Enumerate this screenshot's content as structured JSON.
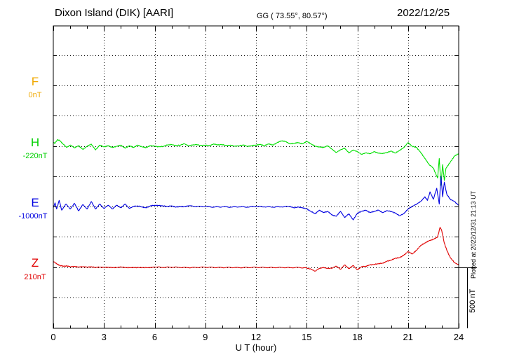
{
  "header": {
    "station": "Dixon Island (DIK)  [AARI]",
    "coords": "GG ( 73.55°,  80.57°)",
    "date": "2022/12/25"
  },
  "footer": {
    "plotted": "Plotted at 2022/12/31 21:13 UT"
  },
  "chart_data": {
    "type": "line",
    "title": "",
    "xlabel": "U T (hour)",
    "ylabel": "",
    "xlim": [
      0,
      24
    ],
    "x_ticks": [
      "0",
      "3",
      "6",
      "9",
      "12",
      "15",
      "18",
      "21",
      "24"
    ],
    "grid": true,
    "scale_bar": {
      "value": 500,
      "label": "500 nT"
    },
    "series": [
      {
        "name": "F",
        "baseline": "0nT",
        "color": "#f0a800",
        "points": []
      },
      {
        "name": "H",
        "baseline": "-220nT",
        "color": "#00e000",
        "points": [
          [
            0,
            30
          ],
          [
            0.1,
            25
          ],
          [
            0.25,
            55
          ],
          [
            0.4,
            45
          ],
          [
            0.6,
            15
          ],
          [
            0.8,
            -10
          ],
          [
            1.0,
            10
          ],
          [
            1.25,
            -12
          ],
          [
            1.5,
            5
          ],
          [
            1.75,
            -25
          ],
          [
            2.0,
            0
          ],
          [
            2.25,
            18
          ],
          [
            2.5,
            -30
          ],
          [
            2.75,
            10
          ],
          [
            3.0,
            -5
          ],
          [
            3.25,
            5
          ],
          [
            3.5,
            -10
          ],
          [
            3.75,
            0
          ],
          [
            4.0,
            10
          ],
          [
            4.25,
            -15
          ],
          [
            4.5,
            5
          ],
          [
            4.75,
            -10
          ],
          [
            5.0,
            10
          ],
          [
            5.25,
            -5
          ],
          [
            5.5,
            -10
          ],
          [
            5.75,
            5
          ],
          [
            6.0,
            2
          ],
          [
            6.25,
            -5
          ],
          [
            6.5,
            0
          ],
          [
            6.75,
            10
          ],
          [
            7.0,
            15
          ],
          [
            7.25,
            5
          ],
          [
            7.5,
            10
          ],
          [
            7.75,
            20
          ],
          [
            8.0,
            5
          ],
          [
            8.25,
            10
          ],
          [
            8.5,
            15
          ],
          [
            8.75,
            5
          ],
          [
            9.0,
            10
          ],
          [
            9.25,
            5
          ],
          [
            9.5,
            20
          ],
          [
            9.75,
            10
          ],
          [
            10.0,
            15
          ],
          [
            10.25,
            5
          ],
          [
            10.5,
            10
          ],
          [
            10.75,
            0
          ],
          [
            11.0,
            5
          ],
          [
            11.25,
            10
          ],
          [
            11.5,
            0
          ],
          [
            11.75,
            5
          ],
          [
            12.0,
            10
          ],
          [
            12.25,
            15
          ],
          [
            12.5,
            5
          ],
          [
            12.75,
            20
          ],
          [
            13.0,
            10
          ],
          [
            13.25,
            30
          ],
          [
            13.5,
            45
          ],
          [
            13.75,
            40
          ],
          [
            14.0,
            20
          ],
          [
            14.25,
            25
          ],
          [
            14.5,
            30
          ],
          [
            14.75,
            20
          ],
          [
            15.0,
            40
          ],
          [
            15.25,
            20
          ],
          [
            15.5,
            0
          ],
          [
            15.75,
            -5
          ],
          [
            16.0,
            -10
          ],
          [
            16.25,
            5
          ],
          [
            16.5,
            -25
          ],
          [
            16.75,
            -50
          ],
          [
            17.0,
            -30
          ],
          [
            17.25,
            -15
          ],
          [
            17.5,
            -55
          ],
          [
            17.75,
            -30
          ],
          [
            18.0,
            -45
          ],
          [
            18.25,
            -65
          ],
          [
            18.5,
            -55
          ],
          [
            18.75,
            -60
          ],
          [
            19.0,
            -45
          ],
          [
            19.25,
            -55
          ],
          [
            19.5,
            -60
          ],
          [
            19.75,
            -50
          ],
          [
            20.0,
            -40
          ],
          [
            20.25,
            -55
          ],
          [
            20.5,
            -35
          ],
          [
            20.75,
            -10
          ],
          [
            21.0,
            30
          ],
          [
            21.25,
            0
          ],
          [
            21.5,
            -10
          ],
          [
            21.75,
            -50
          ],
          [
            22.0,
            -100
          ],
          [
            22.25,
            -150
          ],
          [
            22.5,
            -180
          ],
          [
            22.75,
            -260
          ],
          [
            22.85,
            -100
          ],
          [
            22.95,
            -320
          ],
          [
            23.05,
            -150
          ],
          [
            23.15,
            -280
          ],
          [
            23.25,
            -180
          ],
          [
            23.5,
            -130
          ],
          [
            23.75,
            -80
          ],
          [
            24.0,
            -60
          ]
        ]
      },
      {
        "name": "E",
        "baseline": "-1000nT",
        "color": "#0000e0",
        "points": [
          [
            0,
            -10
          ],
          [
            0.1,
            30
          ],
          [
            0.2,
            -20
          ],
          [
            0.35,
            50
          ],
          [
            0.5,
            -30
          ],
          [
            0.75,
            20
          ],
          [
            1.0,
            -20
          ],
          [
            1.25,
            25
          ],
          [
            1.5,
            -35
          ],
          [
            1.75,
            15
          ],
          [
            2.0,
            -20
          ],
          [
            2.25,
            40
          ],
          [
            2.5,
            -20
          ],
          [
            2.75,
            20
          ],
          [
            3.0,
            -15
          ],
          [
            3.25,
            10
          ],
          [
            3.5,
            -20
          ],
          [
            3.75,
            10
          ],
          [
            4.0,
            -10
          ],
          [
            4.25,
            20
          ],
          [
            4.5,
            -15
          ],
          [
            4.75,
            0
          ],
          [
            5.0,
            5
          ],
          [
            5.25,
            -5
          ],
          [
            5.5,
            -10
          ],
          [
            5.75,
            5
          ],
          [
            6.0,
            10
          ],
          [
            6.25,
            8
          ],
          [
            6.5,
            5
          ],
          [
            6.75,
            0
          ],
          [
            7.0,
            5
          ],
          [
            7.25,
            -5
          ],
          [
            7.5,
            0
          ],
          [
            7.75,
            -2
          ],
          [
            8.0,
            5
          ],
          [
            8.5,
            0
          ],
          [
            9.0,
            0
          ],
          [
            9.5,
            -5
          ],
          [
            10.0,
            -3
          ],
          [
            10.5,
            -5
          ],
          [
            11.0,
            -3
          ],
          [
            11.5,
            -5
          ],
          [
            12.0,
            0
          ],
          [
            12.5,
            -3
          ],
          [
            13.0,
            -5
          ],
          [
            13.5,
            -3
          ],
          [
            14.0,
            0
          ],
          [
            14.25,
            -10
          ],
          [
            14.5,
            -5
          ],
          [
            14.75,
            -10
          ],
          [
            15.0,
            -20
          ],
          [
            15.25,
            -40
          ],
          [
            15.5,
            -60
          ],
          [
            15.75,
            -30
          ],
          [
            16.0,
            -50
          ],
          [
            16.25,
            -40
          ],
          [
            16.5,
            -70
          ],
          [
            16.75,
            -80
          ],
          [
            17.0,
            -40
          ],
          [
            17.25,
            -90
          ],
          [
            17.5,
            -60
          ],
          [
            17.75,
            -110
          ],
          [
            18.0,
            -55
          ],
          [
            18.25,
            -40
          ],
          [
            18.5,
            -30
          ],
          [
            18.75,
            -50
          ],
          [
            19.0,
            -40
          ],
          [
            19.25,
            -30
          ],
          [
            19.5,
            -50
          ],
          [
            19.75,
            -35
          ],
          [
            20.0,
            -40
          ],
          [
            20.25,
            -55
          ],
          [
            20.5,
            -75
          ],
          [
            20.75,
            -60
          ],
          [
            21.0,
            -20
          ],
          [
            21.25,
            0
          ],
          [
            21.5,
            20
          ],
          [
            21.75,
            40
          ],
          [
            22.0,
            80
          ],
          [
            22.15,
            50
          ],
          [
            22.3,
            120
          ],
          [
            22.5,
            60
          ],
          [
            22.7,
            150
          ],
          [
            22.85,
            20
          ],
          [
            22.95,
            250
          ],
          [
            23.05,
            80
          ],
          [
            23.15,
            200
          ],
          [
            23.3,
            100
          ],
          [
            23.5,
            60
          ],
          [
            23.75,
            40
          ],
          [
            24.0,
            10
          ]
        ]
      },
      {
        "name": "Z",
        "baseline": "210nT",
        "color": "#e00000",
        "points": [
          [
            0,
            50
          ],
          [
            0.2,
            30
          ],
          [
            0.4,
            15
          ],
          [
            0.6,
            10
          ],
          [
            0.8,
            12
          ],
          [
            1.0,
            5
          ],
          [
            1.25,
            8
          ],
          [
            1.5,
            3
          ],
          [
            1.75,
            6
          ],
          [
            2.0,
            2
          ],
          [
            2.25,
            5
          ],
          [
            2.5,
            0
          ],
          [
            2.75,
            3
          ],
          [
            3.0,
            0
          ],
          [
            3.25,
            2
          ],
          [
            3.5,
            -2
          ],
          [
            3.75,
            0
          ],
          [
            4.0,
            3
          ],
          [
            4.25,
            0
          ],
          [
            4.5,
            -3
          ],
          [
            4.75,
            0
          ],
          [
            5.0,
            -2
          ],
          [
            5.25,
            0
          ],
          [
            5.5,
            -3
          ],
          [
            5.75,
            0
          ],
          [
            6.0,
            3
          ],
          [
            6.5,
            0
          ],
          [
            7.0,
            2
          ],
          [
            7.5,
            0
          ],
          [
            8.0,
            -2
          ],
          [
            8.5,
            0
          ],
          [
            9.0,
            2
          ],
          [
            9.5,
            0
          ],
          [
            10.0,
            -1
          ],
          [
            10.5,
            0
          ],
          [
            11.0,
            -2
          ],
          [
            11.5,
            0
          ],
          [
            12.0,
            1
          ],
          [
            12.5,
            0
          ],
          [
            13.0,
            -1
          ],
          [
            13.5,
            0
          ],
          [
            14.0,
            -2
          ],
          [
            14.5,
            0
          ],
          [
            15.0,
            -5
          ],
          [
            15.25,
            -15
          ],
          [
            15.5,
            -30
          ],
          [
            15.75,
            -10
          ],
          [
            16.0,
            0
          ],
          [
            16.25,
            -10
          ],
          [
            16.5,
            -5
          ],
          [
            16.75,
            10
          ],
          [
            17.0,
            -15
          ],
          [
            17.25,
            20
          ],
          [
            17.5,
            -10
          ],
          [
            17.75,
            15
          ],
          [
            18.0,
            -20
          ],
          [
            18.25,
            5
          ],
          [
            18.5,
            10
          ],
          [
            18.75,
            20
          ],
          [
            19.0,
            25
          ],
          [
            19.25,
            30
          ],
          [
            19.5,
            35
          ],
          [
            19.75,
            50
          ],
          [
            20.0,
            60
          ],
          [
            20.25,
            75
          ],
          [
            20.5,
            80
          ],
          [
            20.75,
            100
          ],
          [
            21.0,
            130
          ],
          [
            21.25,
            110
          ],
          [
            21.5,
            140
          ],
          [
            21.75,
            180
          ],
          [
            22.0,
            200
          ],
          [
            22.25,
            220
          ],
          [
            22.5,
            230
          ],
          [
            22.75,
            250
          ],
          [
            22.9,
            330
          ],
          [
            23.0,
            300
          ],
          [
            23.15,
            200
          ],
          [
            23.3,
            140
          ],
          [
            23.5,
            80
          ],
          [
            23.75,
            40
          ],
          [
            24.0,
            20
          ]
        ]
      }
    ]
  }
}
